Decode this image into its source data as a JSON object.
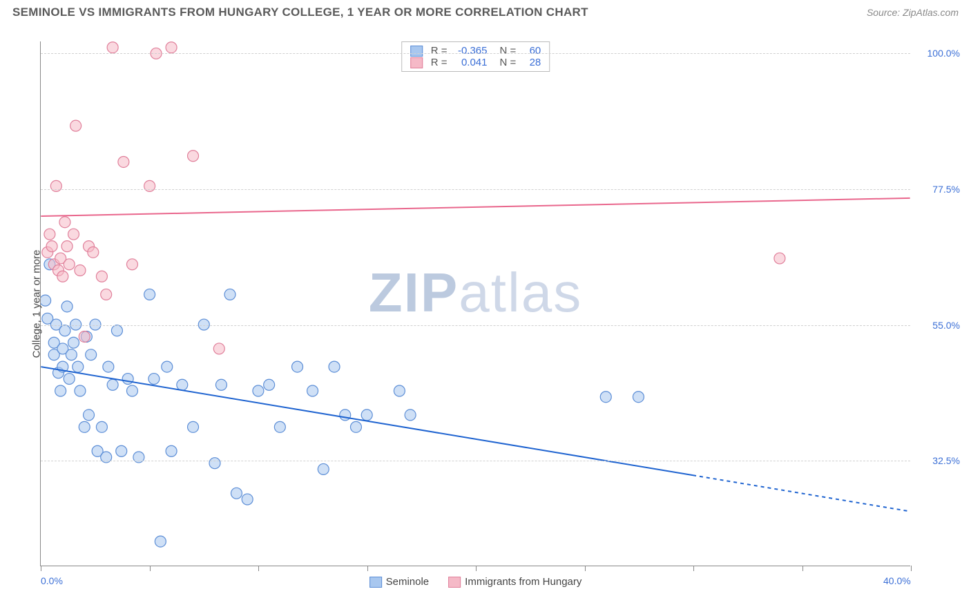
{
  "title": "SEMINOLE VS IMMIGRANTS FROM HUNGARY COLLEGE, 1 YEAR OR MORE CORRELATION CHART",
  "source": "Source: ZipAtlas.com",
  "ylabel": "College, 1 year or more",
  "watermark_bold": "ZIP",
  "watermark_light": "atlas",
  "chart": {
    "type": "scatter",
    "xlim": [
      0,
      40
    ],
    "ylim": [
      15,
      102
    ],
    "xaxis_labels": [
      {
        "v": 0,
        "t": "0.0%"
      },
      {
        "v": 40,
        "t": "40.0%"
      }
    ],
    "xticks": [
      0,
      5,
      10,
      15,
      20,
      25,
      30,
      35,
      40
    ],
    "yaxis_labels": [
      {
        "v": 32.5,
        "t": "32.5%"
      },
      {
        "v": 55.0,
        "t": "55.0%"
      },
      {
        "v": 77.5,
        "t": "77.5%"
      },
      {
        "v": 100.0,
        "t": "100.0%"
      }
    ],
    "grid_color": "#d0d0d0",
    "background_color": "#ffffff",
    "series": [
      {
        "name": "Seminole",
        "fill": "#a8c7ef",
        "stroke": "#5b8dd6",
        "fill_opacity": 0.55,
        "marker_r": 8,
        "R": "-0.365",
        "N": "60",
        "trend": {
          "x1": 0,
          "y1": 48,
          "x2": 30,
          "y2": 30,
          "x2_dash": 40,
          "y2_dash": 24,
          "color": "#1e63d0",
          "width": 2
        },
        "points": [
          [
            0.2,
            59
          ],
          [
            0.3,
            56
          ],
          [
            0.4,
            65
          ],
          [
            0.6,
            50
          ],
          [
            0.6,
            52
          ],
          [
            0.7,
            55
          ],
          [
            0.8,
            47
          ],
          [
            0.9,
            44
          ],
          [
            1.0,
            51
          ],
          [
            1.0,
            48
          ],
          [
            1.1,
            54
          ],
          [
            1.2,
            58
          ],
          [
            1.3,
            46
          ],
          [
            1.4,
            50
          ],
          [
            1.5,
            52
          ],
          [
            1.6,
            55
          ],
          [
            1.7,
            48
          ],
          [
            1.8,
            44
          ],
          [
            2.0,
            38
          ],
          [
            2.1,
            53
          ],
          [
            2.2,
            40
          ],
          [
            2.3,
            50
          ],
          [
            2.5,
            55
          ],
          [
            2.6,
            34
          ],
          [
            2.8,
            38
          ],
          [
            3.0,
            33
          ],
          [
            3.1,
            48
          ],
          [
            3.3,
            45
          ],
          [
            3.5,
            54
          ],
          [
            3.7,
            34
          ],
          [
            4.0,
            46
          ],
          [
            4.2,
            44
          ],
          [
            4.5,
            33
          ],
          [
            5.0,
            60
          ],
          [
            5.2,
            46
          ],
          [
            5.5,
            19
          ],
          [
            5.8,
            48
          ],
          [
            6.0,
            34
          ],
          [
            6.5,
            45
          ],
          [
            7.0,
            38
          ],
          [
            7.5,
            55
          ],
          [
            8.0,
            32
          ],
          [
            8.3,
            45
          ],
          [
            8.7,
            60
          ],
          [
            9.0,
            27
          ],
          [
            9.5,
            26
          ],
          [
            10.0,
            44
          ],
          [
            10.5,
            45
          ],
          [
            11.0,
            38
          ],
          [
            11.8,
            48
          ],
          [
            12.5,
            44
          ],
          [
            13.0,
            31
          ],
          [
            13.5,
            48
          ],
          [
            14.0,
            40
          ],
          [
            14.5,
            38
          ],
          [
            15.0,
            40
          ],
          [
            16.5,
            44
          ],
          [
            17.0,
            40
          ],
          [
            26.0,
            43
          ],
          [
            27.5,
            43
          ]
        ]
      },
      {
        "name": "Immigrants from Hungary",
        "fill": "#f5b9c7",
        "stroke": "#e07f9a",
        "fill_opacity": 0.55,
        "marker_r": 8,
        "R": "0.041",
        "N": "28",
        "trend": {
          "x1": 0,
          "y1": 73,
          "x2": 40,
          "y2": 76,
          "color": "#e9668c",
          "width": 2
        },
        "points": [
          [
            0.3,
            67
          ],
          [
            0.4,
            70
          ],
          [
            0.5,
            68
          ],
          [
            0.6,
            65
          ],
          [
            0.7,
            78
          ],
          [
            0.8,
            64
          ],
          [
            0.9,
            66
          ],
          [
            1.0,
            63
          ],
          [
            1.1,
            72
          ],
          [
            1.2,
            68
          ],
          [
            1.3,
            65
          ],
          [
            1.5,
            70
          ],
          [
            1.6,
            88
          ],
          [
            1.8,
            64
          ],
          [
            2.0,
            53
          ],
          [
            2.2,
            68
          ],
          [
            2.4,
            67
          ],
          [
            2.8,
            63
          ],
          [
            3.0,
            60
          ],
          [
            3.3,
            101
          ],
          [
            3.8,
            82
          ],
          [
            4.2,
            65
          ],
          [
            5.0,
            78
          ],
          [
            5.3,
            100
          ],
          [
            6.0,
            101
          ],
          [
            7.0,
            83
          ],
          [
            8.2,
            51
          ],
          [
            34.0,
            66
          ]
        ]
      }
    ]
  },
  "bottom_legend": [
    {
      "label": "Seminole",
      "fill": "#a8c7ef",
      "stroke": "#5b8dd6"
    },
    {
      "label": "Immigrants from Hungary",
      "fill": "#f5b9c7",
      "stroke": "#e07f9a"
    }
  ]
}
